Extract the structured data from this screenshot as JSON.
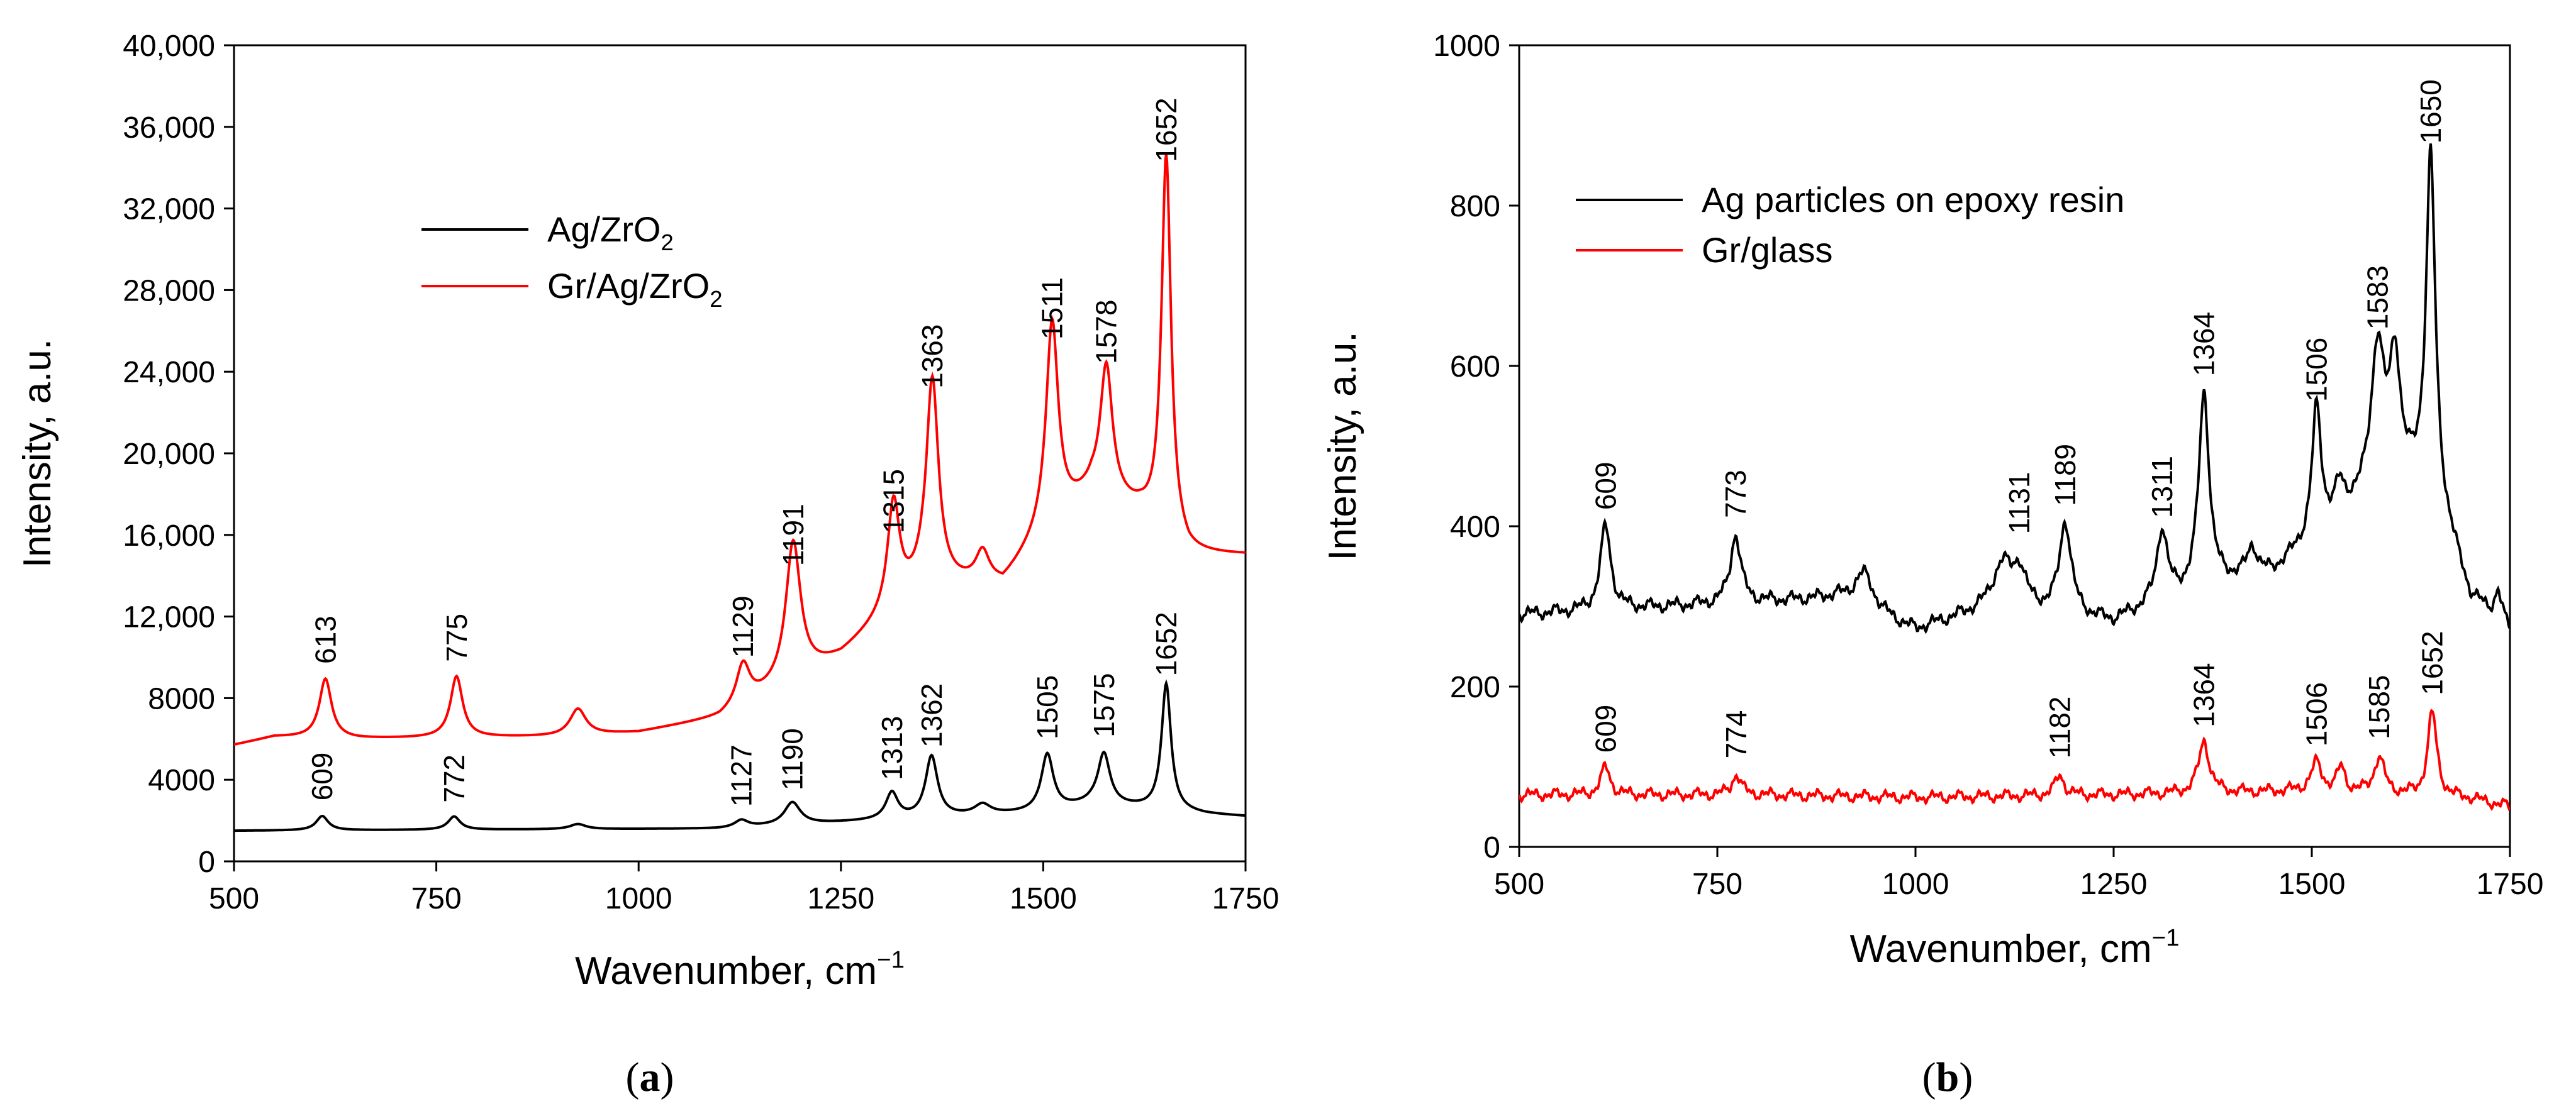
{
  "colors": {
    "black": "#000000",
    "red": "#ff0000",
    "background": "#ffffff"
  },
  "chart_data": [
    {
      "panel_label": "(a)",
      "type": "line",
      "xlabel": "Wavenumber, cm",
      "xlabel_sup": "−1",
      "ylabel": "Intensity, a.u.",
      "xlim": [
        500,
        1750
      ],
      "ylim": [
        0,
        40000
      ],
      "xticks": [
        500,
        750,
        1000,
        1250,
        1500,
        1750
      ],
      "yticks": [
        0,
        4000,
        8000,
        12000,
        16000,
        20000,
        24000,
        28000,
        32000,
        36000,
        40000
      ],
      "ytick_labels": [
        "0",
        "4000",
        "8000",
        "12,000",
        "16,000",
        "20,000",
        "24,000",
        "28,000",
        "32,000",
        "36,000",
        "40,000"
      ],
      "legend": {
        "placement": "upper-center",
        "entries": [
          {
            "main": "Ag/ZrO",
            "sub": "2",
            "tail": "",
            "color": "#000000"
          },
          {
            "main": "Gr/Ag/ZrO",
            "sub": "2",
            "tail": "",
            "color": "#ff0000"
          }
        ]
      },
      "series": [
        {
          "name": "Ag/ZrO2",
          "color": "#000000",
          "baseline": [
            [
              500,
              1500
            ],
            [
              1100,
              1600
            ],
            [
              1250,
              1900
            ],
            [
              1400,
              2200
            ],
            [
              1500,
              2400
            ],
            [
              1560,
              2800
            ],
            [
              1620,
              2600
            ],
            [
              1700,
              2300
            ],
            [
              1750,
              2200
            ]
          ],
          "peaks": [
            [
              609,
              700,
              9
            ],
            [
              772,
              650,
              9
            ],
            [
              925,
              250,
              12
            ],
            [
              1127,
              350,
              10
            ],
            [
              1190,
              1100,
              12
            ],
            [
              1313,
              1300,
              9
            ],
            [
              1362,
              3000,
              9
            ],
            [
              1425,
              500,
              12
            ],
            [
              1505,
              2800,
              9
            ],
            [
              1575,
              2500,
              9
            ],
            [
              1652,
              6200,
              7
            ]
          ],
          "annotations": [
            {
              "label": "609",
              "x": 609,
              "y": 2300
            },
            {
              "label": "772",
              "x": 772,
              "y": 2200
            },
            {
              "label": "1127",
              "x": 1127,
              "y": 2000
            },
            {
              "label": "1190",
              "x": 1190,
              "y": 2800
            },
            {
              "label": "1313",
              "x": 1313,
              "y": 3300
            },
            {
              "label": "1362",
              "x": 1362,
              "y": 4900
            },
            {
              "label": "1505",
              "x": 1505,
              "y": 5300
            },
            {
              "label": "1575",
              "x": 1575,
              "y": 5400
            },
            {
              "label": "1652",
              "x": 1652,
              "y": 8400
            }
          ]
        },
        {
          "name": "Gr/Ag/ZrO2",
          "color": "#ff0000",
          "baseline": [
            [
              500,
              5700
            ],
            [
              550,
              6100
            ],
            [
              650,
              6000
            ],
            [
              900,
              6100
            ],
            [
              1000,
              6300
            ],
            [
              1100,
              7000
            ],
            [
              1250,
              10000
            ],
            [
              1350,
              13500
            ],
            [
              1450,
              13500
            ],
            [
              1500,
              16000
            ],
            [
              1560,
              18000
            ],
            [
              1620,
              17000
            ],
            [
              1680,
              15000
            ],
            [
              1750,
              15000
            ]
          ],
          "peaks": [
            [
              613,
              2900,
              9
            ],
            [
              775,
              3000,
              9
            ],
            [
              925,
              1300,
              12
            ],
            [
              1129,
              2000,
              10
            ],
            [
              1191,
              6800,
              11
            ],
            [
              1315,
              5200,
              9
            ],
            [
              1363,
              10000,
              9
            ],
            [
              1425,
              1500,
              10
            ],
            [
              1511,
              10000,
              9
            ],
            [
              1578,
              6400,
              9
            ],
            [
              1652,
              18600,
              7
            ]
          ],
          "annotations": [
            {
              "label": "613",
              "x": 613,
              "y": 9000
            },
            {
              "label": "775",
              "x": 775,
              "y": 9100
            },
            {
              "label": "1129",
              "x": 1129,
              "y": 9300
            },
            {
              "label": "1191",
              "x": 1191,
              "y": 13800
            },
            {
              "label": "1315",
              "x": 1315,
              "y": 15400
            },
            {
              "label": "1363",
              "x": 1363,
              "y": 22500
            },
            {
              "label": "1511",
              "x": 1511,
              "y": 24900
            },
            {
              "label": "1578",
              "x": 1578,
              "y": 23700
            },
            {
              "label": "1652",
              "x": 1652,
              "y": 33600
            }
          ]
        }
      ]
    },
    {
      "panel_label": "(b)",
      "type": "line",
      "xlabel": "Wavenumber, cm",
      "xlabel_sup": "−1",
      "ylabel": "Intensity, a.u.",
      "xlim": [
        500,
        1750
      ],
      "ylim": [
        0,
        1000
      ],
      "xticks": [
        500,
        750,
        1000,
        1250,
        1500,
        1750
      ],
      "yticks": [
        0,
        200,
        400,
        600,
        800,
        1000
      ],
      "ytick_labels": [
        "0",
        "200",
        "400",
        "600",
        "800",
        "1000"
      ],
      "legend": {
        "placement": "upper-left",
        "entries": [
          {
            "main": "Ag particles on epoxy resin",
            "sub": "",
            "tail": "",
            "color": "#000000"
          },
          {
            "main": "Gr/glass",
            "sub": "",
            "tail": "",
            "color": "#ff0000"
          }
        ]
      },
      "series": [
        {
          "name": "Ag particles on epoxy resin",
          "color": "#000000",
          "baseline": [
            [
              500,
              290
            ],
            [
              700,
              300
            ],
            [
              900,
              310
            ],
            [
              1000,
              270
            ],
            [
              1100,
              300
            ],
            [
              1250,
              280
            ],
            [
              1300,
              300
            ],
            [
              1400,
              330
            ],
            [
              1450,
              340
            ],
            [
              1500,
              380
            ],
            [
              1550,
              420
            ],
            [
              1600,
              450
            ],
            [
              1650,
              450
            ],
            [
              1700,
              310
            ],
            [
              1750,
              270
            ]
          ],
          "peaks": [
            [
              609,
              105,
              8
            ],
            [
              773,
              85,
              8
            ],
            [
              935,
              45,
              15
            ],
            [
              1110,
              50,
              14
            ],
            [
              1131,
              45,
              10
            ],
            [
              1189,
              115,
              9
            ],
            [
              1311,
              90,
              8
            ],
            [
              1364,
              245,
              8
            ],
            [
              1425,
              35,
              8
            ],
            [
              1506,
              160,
              7
            ],
            [
              1535,
              35,
              7
            ],
            [
              1583,
              180,
              10
            ],
            [
              1605,
              150,
              8
            ],
            [
              1650,
              410,
              7
            ],
            [
              1735,
              35,
              5
            ]
          ],
          "noise": 8,
          "annotations": [
            {
              "label": "609",
              "x": 609,
              "y": 403
            },
            {
              "label": "773",
              "x": 773,
              "y": 393
            },
            {
              "label": "1131",
              "x": 1131,
              "y": 373
            },
            {
              "label": "1189",
              "x": 1189,
              "y": 408
            },
            {
              "label": "1311",
              "x": 1311,
              "y": 393
            },
            {
              "label": "1364",
              "x": 1364,
              "y": 570
            },
            {
              "label": "1506",
              "x": 1506,
              "y": 538
            },
            {
              "label": "1583",
              "x": 1583,
              "y": 628
            },
            {
              "label": "1650",
              "x": 1650,
              "y": 860
            }
          ]
        },
        {
          "name": "Gr/glass",
          "color": "#ff0000",
          "baseline": [
            [
              500,
              65
            ],
            [
              800,
              65
            ],
            [
              1000,
              62
            ],
            [
              1250,
              65
            ],
            [
              1500,
              70
            ],
            [
              1700,
              60
            ],
            [
              1750,
              50
            ]
          ],
          "peaks": [
            [
              609,
              35,
              7
            ],
            [
              774,
              25,
              7
            ],
            [
              1182,
              25,
              7
            ],
            [
              1364,
              65,
              8
            ],
            [
              1506,
              35,
              8
            ],
            [
              1537,
              30,
              6
            ],
            [
              1585,
              45,
              8
            ],
            [
              1652,
              105,
              7
            ]
          ],
          "noise": 7,
          "annotations": [
            {
              "label": "609",
              "x": 609,
              "y": 100
            },
            {
              "label": "774",
              "x": 774,
              "y": 93
            },
            {
              "label": "1182",
              "x": 1182,
              "y": 93
            },
            {
              "label": "1364",
              "x": 1364,
              "y": 132
            },
            {
              "label": "1506",
              "x": 1506,
              "y": 108
            },
            {
              "label": "1585",
              "x": 1585,
              "y": 117
            },
            {
              "label": "1652",
              "x": 1652,
              "y": 172
            }
          ]
        }
      ]
    }
  ]
}
